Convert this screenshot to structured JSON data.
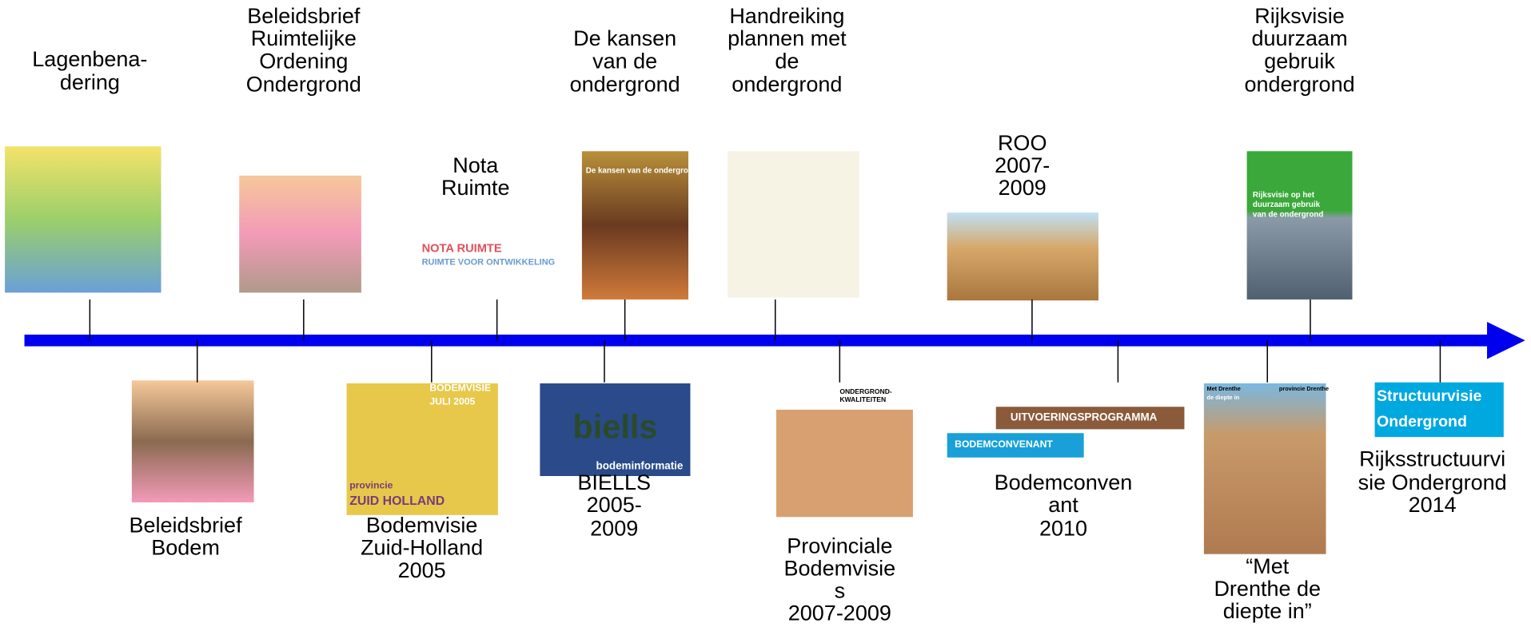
{
  "timeline": {
    "items": [
      {
        "lines": [
          "Lagenbena-",
          "dering"
        ]
      },
      {
        "lines": [
          "Beleidsbrief",
          "Ruimtelijke",
          "Ordening",
          "Ondergrond"
        ]
      },
      {
        "lines": [
          "Nota",
          "Ruimte"
        ],
        "image_text": [
          "NOTA RUIMTE",
          "RUIMTE VOOR ONTWIKKELING"
        ]
      },
      {
        "lines": [
          "De kansen",
          "van de",
          "ondergrond"
        ],
        "image_text": [
          "De kansen van de ondergrond"
        ]
      },
      {
        "lines": [
          "Handreiking",
          "plannen met",
          "de",
          "ondergrond"
        ]
      },
      {
        "lines": [
          "ROO",
          "2007-",
          "2009"
        ]
      },
      {
        "lines": [
          "Rijksvisie",
          "duurzaam",
          "gebruik",
          "ondergrond"
        ],
        "image_text": [
          "Rijksvisie op het",
          "duurzaam gebruik",
          "van de ondergrond"
        ]
      },
      {
        "lines": [
          "Beleidsbrief",
          "Bodem"
        ]
      },
      {
        "lines": [
          "Bodemvisie",
          "Zuid-Holland",
          "2005"
        ],
        "image_text": [
          "BODEMVISIE",
          "JULI 2005",
          "provincie",
          "ZUID HOLLAND"
        ]
      },
      {
        "lines": [
          "BIELLS",
          "2005-",
          "2009"
        ],
        "image_text": [
          "biells",
          "bodeminformatie"
        ]
      },
      {
        "lines": [
          "Provinciale",
          "Bodemvisie",
          "s",
          "2007-2009"
        ],
        "image_text": [
          "ONDERGROND-",
          "KWALITEITEN"
        ]
      },
      {
        "lines": [
          "Bodemconven",
          "ant",
          "2010"
        ],
        "image_text": [
          "UITVOERINGSPROGRAMMA",
          "BODEMCONVENANT"
        ]
      },
      {
        "lines": [
          "“Met",
          "Drenthe de",
          "diepte in”"
        ],
        "image_text": [
          "Met Drenthe",
          "de diepte in",
          "provincie Drenthe"
        ]
      },
      {
        "lines": [
          "Rijksstructuurvi",
          "sie Ondergrond",
          "2014"
        ],
        "image_text": [
          "Structuurvisie",
          "Ondergrond"
        ]
      }
    ]
  }
}
